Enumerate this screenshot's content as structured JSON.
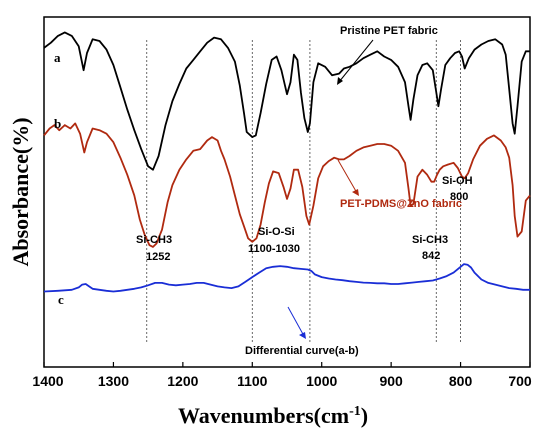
{
  "chart_data": {
    "type": "line",
    "xlabel": "Wavenumbers(cm",
    "xlabel_sup": "-1",
    "xlabel_tail": ")",
    "ylabel": "Absorbance(%)",
    "xlim": [
      1400,
      700
    ],
    "x_reversed": true,
    "xticks": [
      "1400",
      "1300",
      "1200",
      "1100",
      "1000",
      "900",
      "800",
      "700"
    ],
    "grid": false,
    "series": [
      {
        "name": "Pristine  PET fabric",
        "letter": "a",
        "color": "#000000",
        "x": [
          1400,
          1390,
          1380,
          1370,
          1360,
          1350,
          1343,
          1338,
          1330,
          1320,
          1310,
          1300,
          1290,
          1280,
          1270,
          1260,
          1250,
          1243,
          1235,
          1225,
          1215,
          1205,
          1195,
          1185,
          1175,
          1165,
          1155,
          1145,
          1135,
          1125,
          1118,
          1112,
          1108,
          1100,
          1095,
          1088,
          1080,
          1072,
          1065,
          1058,
          1050,
          1045,
          1040,
          1035,
          1030,
          1025,
          1020,
          1017,
          1012,
          1005,
          995,
          985,
          975,
          968,
          960,
          950,
          940,
          930,
          920,
          910,
          900,
          890,
          880,
          875,
          872,
          868,
          862,
          855,
          848,
          840,
          835,
          832,
          828,
          822,
          815,
          808,
          802,
          798,
          794,
          788,
          780,
          770,
          760,
          750,
          740,
          735,
          730,
          725,
          722,
          718,
          712,
          706,
          700
        ],
        "y": [
          7.1,
          7.25,
          7.45,
          7.55,
          7.45,
          7.15,
          6.45,
          6.95,
          7.35,
          7.3,
          7.05,
          6.6,
          5.95,
          5.3,
          4.7,
          4.15,
          3.65,
          3.55,
          3.95,
          4.85,
          5.55,
          6.05,
          6.5,
          6.75,
          7.0,
          7.25,
          7.4,
          7.35,
          7.1,
          6.7,
          6.0,
          5.2,
          4.65,
          4.5,
          4.55,
          5.2,
          6.05,
          6.75,
          6.85,
          6.45,
          5.75,
          6.1,
          6.9,
          6.75,
          5.8,
          5.05,
          4.65,
          4.9,
          6.1,
          6.65,
          6.55,
          6.3,
          6.35,
          6.5,
          6.55,
          6.65,
          6.8,
          6.9,
          7.0,
          6.85,
          6.75,
          6.55,
          6.1,
          5.4,
          5.0,
          5.6,
          6.3,
          6.6,
          6.65,
          6.45,
          5.8,
          5.4,
          5.9,
          6.6,
          6.8,
          6.95,
          7.0,
          6.85,
          6.5,
          6.8,
          7.05,
          7.2,
          7.3,
          7.35,
          7.2,
          6.9,
          5.9,
          4.9,
          4.6,
          5.4,
          6.7,
          7.0,
          7.0
        ]
      },
      {
        "name": "PET-PDMS@ZnO fabric",
        "letter": "b",
        "color": "#b02a10",
        "x": [
          1400,
          1392,
          1385,
          1378,
          1370,
          1362,
          1355,
          1348,
          1342,
          1338,
          1330,
          1320,
          1310,
          1300,
          1290,
          1280,
          1270,
          1262,
          1255,
          1248,
          1243,
          1238,
          1230,
          1222,
          1215,
          1205,
          1195,
          1185,
          1175,
          1165,
          1158,
          1150,
          1145,
          1140,
          1132,
          1125,
          1118,
          1112,
          1106,
          1100,
          1094,
          1088,
          1082,
          1076,
          1070,
          1062,
          1055,
          1050,
          1045,
          1040,
          1034,
          1028,
          1022,
          1018,
          1012,
          1005,
          998,
          990,
          982,
          975,
          968,
          960,
          950,
          940,
          930,
          920,
          910,
          900,
          890,
          880,
          875,
          872,
          868,
          862,
          855,
          848,
          842,
          838,
          834,
          830,
          825,
          818,
          810,
          804,
          798,
          794,
          789,
          782,
          772,
          762,
          752,
          742,
          735,
          730,
          725,
          722,
          718,
          712,
          706,
          700
        ],
        "y": [
          4.55,
          4.75,
          4.85,
          4.7,
          4.85,
          4.75,
          4.9,
          4.6,
          4.05,
          4.35,
          4.75,
          4.7,
          4.6,
          4.35,
          3.9,
          3.4,
          2.8,
          2.1,
          1.65,
          1.35,
          1.3,
          1.4,
          1.8,
          2.6,
          3.1,
          3.55,
          3.85,
          4.1,
          4.15,
          4.4,
          4.5,
          4.4,
          4.1,
          3.85,
          3.35,
          2.8,
          2.25,
          1.9,
          1.55,
          1.45,
          1.55,
          1.95,
          2.6,
          3.15,
          3.5,
          3.45,
          3.05,
          2.7,
          3.0,
          3.55,
          3.55,
          3.05,
          2.2,
          1.95,
          2.5,
          3.3,
          3.65,
          3.8,
          3.9,
          3.85,
          3.85,
          3.95,
          4.1,
          4.2,
          4.25,
          4.3,
          4.3,
          4.25,
          4.1,
          3.75,
          3.0,
          2.5,
          2.55,
          3.35,
          3.55,
          3.4,
          3.2,
          3.2,
          3.4,
          3.55,
          3.65,
          3.7,
          3.75,
          3.6,
          3.35,
          3.3,
          3.45,
          3.85,
          4.25,
          4.45,
          4.55,
          4.4,
          4.2,
          3.9,
          3.1,
          2.2,
          1.6,
          1.75,
          2.65,
          2.8
        ]
      },
      {
        "name": "Differential curve(a-b)",
        "letter": "c",
        "color": "#1a2ed6",
        "x": [
          1400,
          1380,
          1360,
          1350,
          1345,
          1340,
          1335,
          1330,
          1320,
          1310,
          1300,
          1290,
          1280,
          1270,
          1260,
          1250,
          1240,
          1230,
          1220,
          1210,
          1200,
          1190,
          1180,
          1170,
          1160,
          1150,
          1140,
          1130,
          1120,
          1110,
          1100,
          1090,
          1080,
          1070,
          1060,
          1050,
          1040,
          1030,
          1020,
          1015,
          1010,
          1000,
          990,
          980,
          970,
          960,
          950,
          940,
          930,
          920,
          910,
          900,
          890,
          880,
          870,
          860,
          850,
          840,
          830,
          820,
          810,
          800,
          795,
          790,
          785,
          780,
          770,
          760,
          750,
          740,
          730,
          720,
          710,
          700
        ],
        "y": [
          0.0,
          0.02,
          0.05,
          0.12,
          0.2,
          0.22,
          0.15,
          0.08,
          0.05,
          0.02,
          0.0,
          0.02,
          0.05,
          0.08,
          0.12,
          0.18,
          0.25,
          0.25,
          0.2,
          0.18,
          0.2,
          0.22,
          0.25,
          0.25,
          0.2,
          0.15,
          0.12,
          0.1,
          0.15,
          0.28,
          0.42,
          0.55,
          0.68,
          0.72,
          0.74,
          0.72,
          0.68,
          0.66,
          0.64,
          0.6,
          0.5,
          0.42,
          0.38,
          0.35,
          0.33,
          0.3,
          0.28,
          0.26,
          0.25,
          0.24,
          0.24,
          0.22,
          0.22,
          0.24,
          0.26,
          0.28,
          0.3,
          0.32,
          0.38,
          0.45,
          0.55,
          0.72,
          0.8,
          0.78,
          0.7,
          0.55,
          0.35,
          0.25,
          0.2,
          0.15,
          0.1,
          0.08,
          0.05,
          0.05
        ]
      }
    ],
    "reference_lines": [
      1252,
      1100,
      1017,
      835,
      800
    ],
    "annotations": [
      {
        "id": "si-ch3-1252",
        "line1": "Si-CH3",
        "line2": "1252"
      },
      {
        "id": "si-o-si",
        "line1": "Si-O-Si",
        "line2": "1100-1030"
      },
      {
        "id": "si-ch3-842",
        "line1": "Si-CH3",
        "line2": "842"
      },
      {
        "id": "si-oh",
        "line1": "Si-OH",
        "line2": "800"
      }
    ]
  }
}
